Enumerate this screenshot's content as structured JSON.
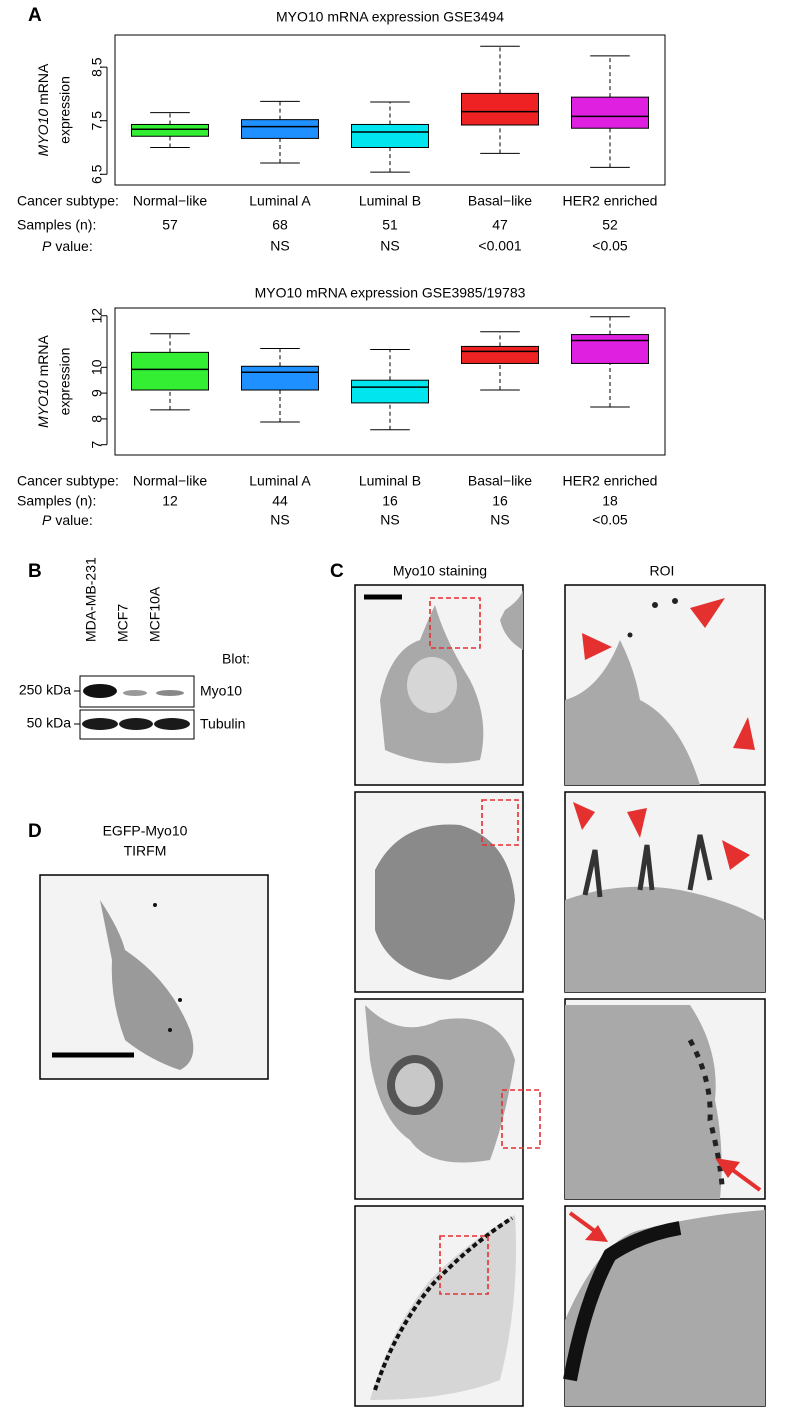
{
  "panel_labels": [
    "A",
    "B",
    "C",
    "D"
  ],
  "chart_data": [
    {
      "type": "box",
      "title": "MYO10 mRNA expression GSE3494",
      "ylabel_italic": "MYO10",
      "ylabel_rest": "mRNA",
      "ylabel_line2": "expression",
      "categories": [
        "Normal−like",
        "Luminal A",
        "Luminal B",
        "Basal−like",
        "HER2 enriched"
      ],
      "colors": [
        "#33ee33",
        "#1e90ff",
        "#00e5ee",
        "#ee2222",
        "#e020e0"
      ],
      "whisker_low": [
        7.0,
        6.71,
        6.54,
        6.89,
        6.63
      ],
      "q1": [
        7.21,
        7.17,
        7.0,
        7.42,
        7.36
      ],
      "median": [
        7.34,
        7.39,
        7.29,
        7.67,
        7.58
      ],
      "q3": [
        7.43,
        7.52,
        7.43,
        8.01,
        7.94
      ],
      "whisker_high": [
        7.65,
        7.86,
        7.85,
        8.89,
        8.71
      ],
      "ylim": [
        6.3,
        9.1
      ],
      "yticks": [
        6.5,
        7.5,
        8.5
      ],
      "row_subtype": "Cancer subtype:",
      "row_samples": "Samples (n):",
      "row_p_italic": "P",
      "row_p_rest": "value:",
      "samples": [
        57,
        68,
        51,
        47,
        52
      ],
      "p_values": [
        null,
        "NS",
        "NS",
        "<0.001",
        "<0.05"
      ]
    },
    {
      "type": "box",
      "title": "MYO10 mRNA expression GSE3985/19783",
      "ylabel_italic": "MYO10",
      "ylabel_rest": "mRNA",
      "ylabel_line2": "expression",
      "categories": [
        "Normal−like",
        "Luminal A",
        "Luminal B",
        "Basal−like",
        "HER2 enriched"
      ],
      "colors": [
        "#33ee33",
        "#1e90ff",
        "#00e5ee",
        "#ee2222",
        "#e020e0"
      ],
      "whisker_low": [
        8.35,
        7.88,
        7.58,
        9.12,
        8.46
      ],
      "q1": [
        9.12,
        9.12,
        8.62,
        10.15,
        10.15
      ],
      "median": [
        9.92,
        9.81,
        9.23,
        10.62,
        11.04
      ],
      "q3": [
        10.58,
        10.04,
        9.5,
        10.81,
        11.27
      ],
      "whisker_high": [
        11.3,
        10.73,
        10.69,
        11.38,
        11.96
      ],
      "ylim": [
        6.6,
        12.3
      ],
      "yticks": [
        7,
        8,
        9,
        10,
        12
      ],
      "row_subtype": "Cancer subtype:",
      "row_samples": "Samples (n):",
      "row_p_italic": "P",
      "row_p_rest": "value:",
      "samples": [
        12,
        44,
        16,
        16,
        18
      ],
      "p_values": [
        null,
        "NS",
        "NS",
        "NS",
        "<0.05"
      ]
    }
  ],
  "blot": {
    "lanes": [
      "MDA-MB-231",
      "MCF7",
      "MCF10A"
    ],
    "header": "Blot:",
    "rows": [
      {
        "marker": "250 kDa",
        "protein": "Myo10"
      },
      {
        "marker": "50 kDa",
        "protein": "Tubulin"
      }
    ]
  },
  "staining": {
    "headers": [
      "Myo10 staining",
      "ROI"
    ]
  },
  "tirfm": {
    "title_line1": "EGFP-Myo10",
    "title_line2": "TIRFM"
  }
}
